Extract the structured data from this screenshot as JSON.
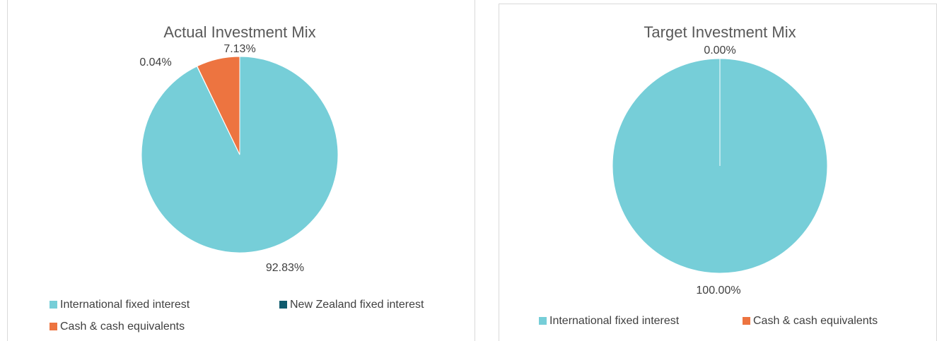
{
  "chart_data": [
    {
      "type": "pie",
      "title": "Actual Investment Mix",
      "categories": [
        "International fixed interest",
        "New Zealand fixed interest",
        "Cash & cash equivalents"
      ],
      "values": [
        92.83,
        0.04,
        7.13
      ],
      "value_labels": [
        "92.83%",
        "0.04%",
        "7.13%"
      ],
      "colors": [
        "#76ced8",
        "#0f5b6e",
        "#ed7440"
      ]
    },
    {
      "type": "pie",
      "title": "Target Investment Mix",
      "categories": [
        "International fixed interest",
        "Cash & cash equivalents"
      ],
      "values": [
        100,
        0
      ],
      "value_labels": [
        "100.00%",
        "0.00%"
      ],
      "colors": [
        "#76ced8",
        "#ed7440"
      ]
    }
  ]
}
